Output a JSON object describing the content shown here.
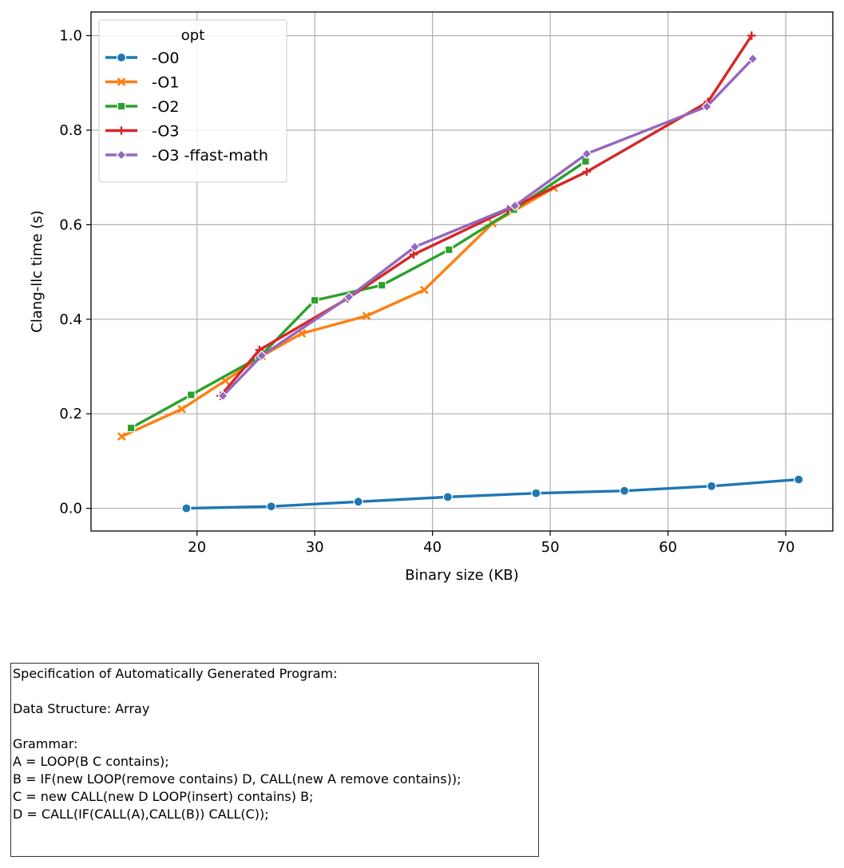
{
  "chart_data": {
    "type": "line",
    "title": "",
    "xlabel": "Binary size (KB)",
    "ylabel": "Clang-llc time (s)",
    "xlim": [
      11,
      74
    ],
    "ylim": [
      -0.048,
      1.05
    ],
    "xticks": [
      20,
      30,
      40,
      50,
      60,
      70
    ],
    "yticks": [
      0.0,
      0.2,
      0.4,
      0.6,
      0.8,
      1.0
    ],
    "xtick_labels": [
      "20",
      "30",
      "40",
      "50",
      "60",
      "70"
    ],
    "ytick_labels": [
      "0.0",
      "0.2",
      "0.4",
      "0.6",
      "0.8",
      "1.0"
    ],
    "grid": true,
    "legend": {
      "title": "opt",
      "placement": "top-left"
    },
    "series": [
      {
        "name": "-O0",
        "color": "#1f77b4",
        "marker": "circle",
        "x": [
          19.1,
          26.3,
          33.7,
          41.3,
          48.8,
          56.3,
          63.7,
          71.1
        ],
        "y": [
          0.0,
          0.004,
          0.014,
          0.024,
          0.032,
          0.037,
          0.047,
          0.061
        ]
      },
      {
        "name": "-O1",
        "color": "#ff7f0e",
        "marker": "x",
        "x": [
          13.6,
          18.7,
          22.4,
          25.5,
          28.9,
          34.4,
          39.3,
          45.1,
          50.3
        ],
        "y": [
          0.152,
          0.21,
          0.27,
          0.322,
          0.37,
          0.407,
          0.462,
          0.603,
          0.678
        ]
      },
      {
        "name": "-O2",
        "color": "#2ca02c",
        "marker": "square",
        "x": [
          14.4,
          19.5,
          25.3,
          30.0,
          35.7,
          41.4,
          46.9,
          53.0
        ],
        "y": [
          0.17,
          0.24,
          0.32,
          0.44,
          0.472,
          0.547,
          0.632,
          0.734
        ]
      },
      {
        "name": "-O3",
        "color": "#d62728",
        "marker": "plus",
        "x": [
          22.0,
          25.3,
          32.8,
          38.4,
          46.4,
          53.1,
          63.4,
          67.1
        ],
        "y": [
          0.238,
          0.335,
          0.444,
          0.537,
          0.632,
          0.712,
          0.86,
          1.0
        ]
      },
      {
        "name": "-O3 -ffast-math",
        "color": "#9467bd",
        "marker": "diamond",
        "x": [
          22.2,
          25.5,
          32.9,
          38.5,
          47.0,
          53.1,
          63.3,
          67.2
        ],
        "y": [
          0.238,
          0.323,
          0.447,
          0.553,
          0.64,
          0.75,
          0.85,
          0.951
        ]
      }
    ]
  },
  "spec": {
    "title": "Specification of Automatically Generated Program:",
    "data_structure": "Data Structure: Array",
    "grammar_header": "Grammar:",
    "grammar_lines": [
      "A = LOOP(B C contains);",
      "B = IF(new LOOP(remove contains) D, CALL(new A remove contains));",
      "C = new CALL(new D LOOP(insert) contains) B;",
      "D = CALL(IF(CALL(A),CALL(B)) CALL(C));"
    ]
  }
}
